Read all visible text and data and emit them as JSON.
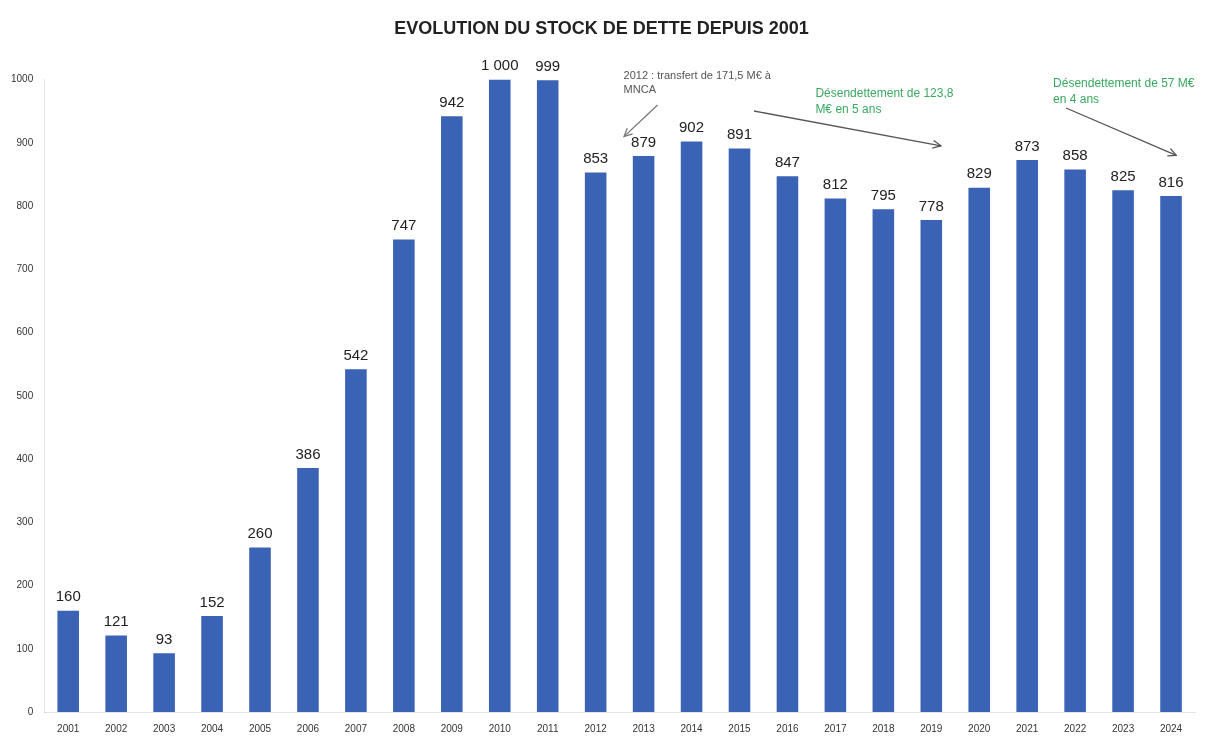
{
  "chart_data": {
    "type": "bar",
    "title": "EVOLUTION DU STOCK DE DETTE DEPUIS 2001",
    "categories": [
      "2001",
      "2002",
      "2003",
      "2004",
      "2005",
      "2006",
      "2007",
      "2008",
      "2009",
      "2010",
      "2011",
      "2012",
      "2013",
      "2014",
      "2015",
      "2016",
      "2017",
      "2018",
      "2019",
      "2020",
      "2021",
      "2022",
      "2023",
      "2024"
    ],
    "values": [
      160,
      121,
      93,
      152,
      260,
      386,
      542,
      747,
      942,
      1000,
      999,
      853,
      879,
      902,
      891,
      847,
      812,
      795,
      778,
      829,
      873,
      858,
      825,
      816
    ],
    "value_labels": [
      "160",
      "121",
      "93",
      "152",
      "260",
      "386",
      "542",
      "747",
      "942",
      "1 000",
      "999",
      "853",
      "879",
      "902",
      "891",
      "847",
      "812",
      "795",
      "778",
      "829",
      "873",
      "858",
      "825",
      "816"
    ],
    "color": "#3a62b5",
    "ylim": [
      0,
      1000
    ],
    "yticks": [
      0,
      100,
      200,
      300,
      400,
      500,
      600,
      700,
      800,
      900,
      1000
    ],
    "grid": false,
    "annotations": [
      "2012 : transfert de 171,5 M€ à MNCA",
      "Désendettement de 123,8 M€ en 5 ans",
      "Désendettement de 57 M€ en 4 ans"
    ]
  }
}
